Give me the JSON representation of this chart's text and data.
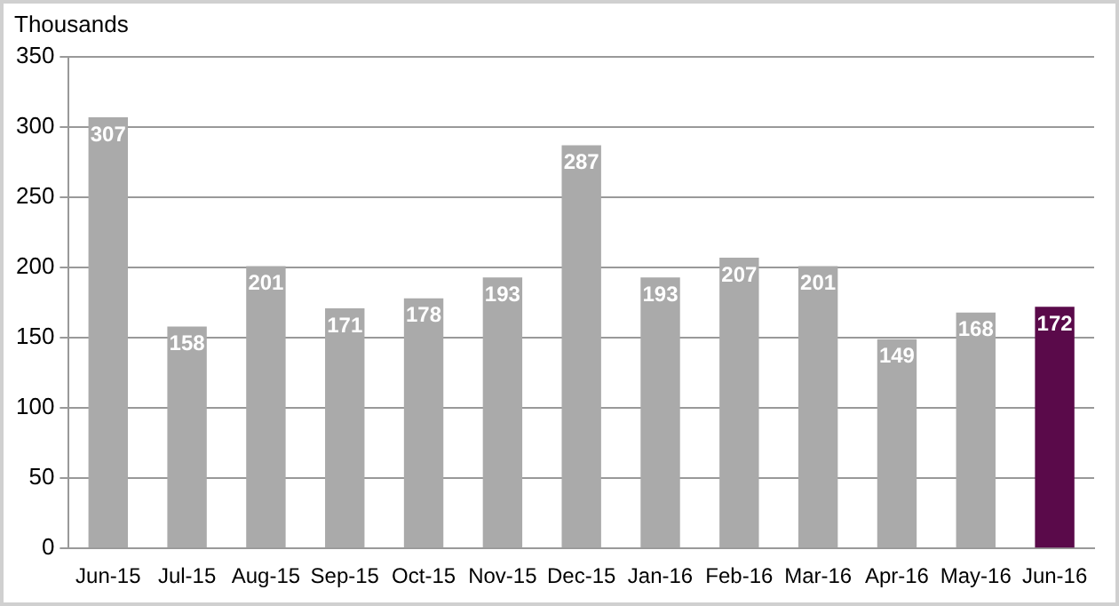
{
  "chart_data": {
    "type": "bar",
    "ylabel": "Thousands",
    "categories": [
      "Jun-15",
      "Jul-15",
      "Aug-15",
      "Sep-15",
      "Oct-15",
      "Nov-15",
      "Dec-15",
      "Jan-16",
      "Feb-16",
      "Mar-16",
      "Apr-16",
      "May-16",
      "Jun-16"
    ],
    "values": [
      307,
      158,
      201,
      171,
      178,
      193,
      287,
      193,
      207,
      201,
      149,
      168,
      172
    ],
    "colors": [
      "#aaaaaa",
      "#aaaaaa",
      "#aaaaaa",
      "#aaaaaa",
      "#aaaaaa",
      "#aaaaaa",
      "#aaaaaa",
      "#aaaaaa",
      "#aaaaaa",
      "#aaaaaa",
      "#aaaaaa",
      "#aaaaaa",
      "#5a0a4a"
    ],
    "ylim": [
      0,
      350
    ],
    "yticks": [
      0,
      50,
      100,
      150,
      200,
      250,
      300,
      350
    ],
    "grid": "y",
    "legend": false,
    "data_labels": true
  }
}
